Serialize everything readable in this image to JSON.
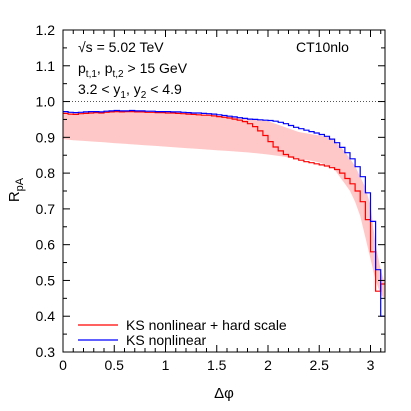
{
  "chart_data": {
    "type": "line",
    "xlabel": "Δφ",
    "ylabel": "R",
    "ylabel_sub": "pA",
    "xlim": [
      0,
      3.14159
    ],
    "ylim": [
      0.3,
      1.2
    ],
    "xticks": [
      0,
      0.5,
      1,
      1.5,
      2,
      2.5,
      3
    ],
    "xtick_labels": [
      "0",
      "0.5",
      "1",
      "1.5",
      "2",
      "2.5",
      "3"
    ],
    "yticks": [
      0.3,
      0.4,
      0.5,
      0.6,
      0.7,
      0.8,
      0.9,
      1.0,
      1.1,
      1.2
    ],
    "ytick_labels": [
      "0.3",
      "0.4",
      "0.5",
      "0.6",
      "0.7",
      "0.8",
      "0.9",
      "1.0",
      "1.1",
      "1.2"
    ],
    "reference_line": 1.0,
    "annotations": {
      "energy": "√s = 5.02 TeV",
      "pt_cut": "pt,1, pt,2 > 15 GeV",
      "rapidity": "3.2 < y1, y2 < 4.9",
      "pdf": "CT10nlo"
    },
    "band": {
      "color": "#ffc8c8",
      "x": [
        0,
        0.1,
        0.2,
        0.3,
        0.4,
        0.5,
        0.6,
        0.7,
        0.8,
        0.9,
        1.0,
        1.1,
        1.2,
        1.3,
        1.4,
        1.5,
        1.6,
        1.7,
        1.8,
        1.9,
        2.0,
        2.1,
        2.2,
        2.3,
        2.4,
        2.5,
        2.6,
        2.65,
        2.7,
        2.75,
        2.8,
        2.85,
        2.9,
        2.95,
        3.0,
        3.05,
        3.1,
        3.14159
      ],
      "upper": [
        0.965,
        0.965,
        0.967,
        0.969,
        0.972,
        0.975,
        0.973,
        0.972,
        0.971,
        0.97,
        0.968,
        0.967,
        0.966,
        0.965,
        0.963,
        0.96,
        0.958,
        0.955,
        0.953,
        0.95,
        0.945,
        0.935,
        0.925,
        0.915,
        0.91,
        0.905,
        0.9,
        0.89,
        0.875,
        0.86,
        0.84,
        0.82,
        0.79,
        0.76,
        0.71,
        0.6,
        0.53,
        0.49
      ],
      "lower": [
        0.895,
        0.892,
        0.89,
        0.888,
        0.886,
        0.884,
        0.882,
        0.88,
        0.878,
        0.876,
        0.874,
        0.872,
        0.87,
        0.868,
        0.866,
        0.864,
        0.862,
        0.86,
        0.858,
        0.855,
        0.852,
        0.848,
        0.844,
        0.84,
        0.836,
        0.83,
        0.82,
        0.81,
        0.79,
        0.77,
        0.75,
        0.72,
        0.68,
        0.62,
        0.56,
        0.5,
        0.46,
        0.45
      ]
    },
    "series": [
      {
        "name": "KS nonlinear + hard scale",
        "color": "#ff0000",
        "x": [
          0,
          0.05,
          0.1,
          0.15,
          0.2,
          0.25,
          0.3,
          0.35,
          0.4,
          0.45,
          0.5,
          0.55,
          0.6,
          0.65,
          0.7,
          0.75,
          0.8,
          0.85,
          0.9,
          0.95,
          1.0,
          1.05,
          1.1,
          1.15,
          1.2,
          1.25,
          1.3,
          1.35,
          1.4,
          1.45,
          1.5,
          1.55,
          1.6,
          1.65,
          1.7,
          1.75,
          1.8,
          1.85,
          1.9,
          1.95,
          2.0,
          2.05,
          2.1,
          2.15,
          2.2,
          2.25,
          2.3,
          2.35,
          2.4,
          2.45,
          2.5,
          2.55,
          2.6,
          2.65,
          2.7,
          2.75,
          2.8,
          2.85,
          2.9,
          2.95,
          3.0,
          3.05,
          3.1
        ],
        "values": [
          0.967,
          0.965,
          0.964,
          0.966,
          0.967,
          0.968,
          0.969,
          0.968,
          0.97,
          0.971,
          0.972,
          0.971,
          0.972,
          0.972,
          0.971,
          0.971,
          0.97,
          0.97,
          0.969,
          0.969,
          0.968,
          0.968,
          0.967,
          0.966,
          0.965,
          0.964,
          0.963,
          0.962,
          0.962,
          0.96,
          0.958,
          0.956,
          0.954,
          0.951,
          0.948,
          0.944,
          0.938,
          0.93,
          0.918,
          0.905,
          0.888,
          0.873,
          0.862,
          0.852,
          0.845,
          0.84,
          0.836,
          0.832,
          0.829,
          0.826,
          0.823,
          0.82,
          0.815,
          0.81,
          0.8,
          0.785,
          0.77,
          0.75,
          0.72,
          0.67,
          0.58,
          0.47,
          0.49
        ]
      },
      {
        "name": "KS nonlinear",
        "color": "#0000ff",
        "x": [
          0,
          0.05,
          0.1,
          0.15,
          0.2,
          0.25,
          0.3,
          0.35,
          0.4,
          0.45,
          0.5,
          0.55,
          0.6,
          0.65,
          0.7,
          0.75,
          0.8,
          0.85,
          0.9,
          0.95,
          1.0,
          1.05,
          1.1,
          1.15,
          1.2,
          1.25,
          1.3,
          1.35,
          1.4,
          1.45,
          1.5,
          1.55,
          1.6,
          1.65,
          1.7,
          1.75,
          1.8,
          1.85,
          1.9,
          1.95,
          2.0,
          2.05,
          2.1,
          2.15,
          2.2,
          2.25,
          2.3,
          2.35,
          2.4,
          2.45,
          2.5,
          2.55,
          2.6,
          2.65,
          2.7,
          2.75,
          2.8,
          2.85,
          2.9,
          2.95,
          3.0,
          3.05,
          3.1
        ],
        "values": [
          0.972,
          0.97,
          0.969,
          0.97,
          0.971,
          0.972,
          0.972,
          0.971,
          0.973,
          0.974,
          0.975,
          0.974,
          0.974,
          0.975,
          0.974,
          0.974,
          0.973,
          0.973,
          0.972,
          0.972,
          0.972,
          0.971,
          0.971,
          0.97,
          0.969,
          0.968,
          0.968,
          0.967,
          0.966,
          0.965,
          0.963,
          0.961,
          0.959,
          0.957,
          0.955,
          0.953,
          0.951,
          0.95,
          0.949,
          0.948,
          0.947,
          0.945,
          0.942,
          0.938,
          0.933,
          0.928,
          0.924,
          0.92,
          0.916,
          0.912,
          0.908,
          0.903,
          0.895,
          0.885,
          0.872,
          0.857,
          0.84,
          0.818,
          0.79,
          0.745,
          0.665,
          0.53,
          0.4
        ]
      }
    ],
    "legend_position": "bottom-left",
    "grid": false
  }
}
